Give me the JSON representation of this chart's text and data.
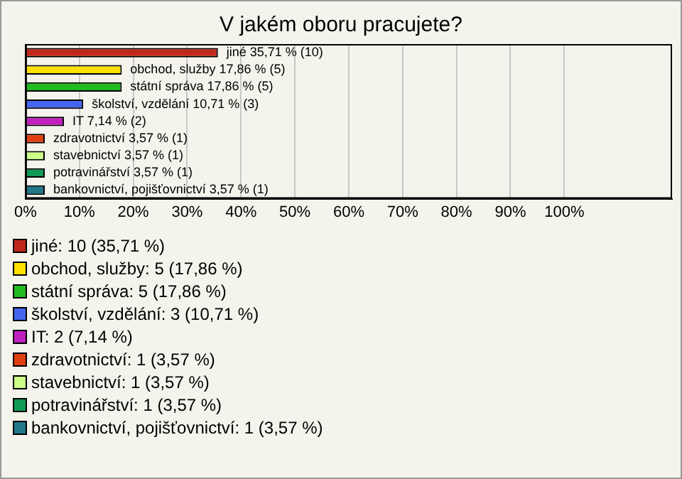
{
  "chart_data": {
    "type": "bar",
    "orientation": "horizontal",
    "title": "V jakém oboru pracujete?",
    "categories": [
      null,
      null,
      null,
      null,
      null,
      null,
      null,
      null,
      null
    ],
    "series": [
      {
        "name": "jiné: 10 (35,71 %)",
        "color": "#c0281c",
        "values": [
          35.71,
          null,
          null,
          null,
          null,
          null,
          null,
          null,
          null
        ],
        "value_labels": [
          "jiné 35,71 % (10)",
          null,
          null,
          null,
          null,
          null,
          null,
          null,
          null
        ]
      },
      {
        "name": "obchod, služby: 5 (17,86 %)",
        "color": "#ffe000",
        "values": [
          null,
          17.86,
          null,
          null,
          null,
          null,
          null,
          null,
          null
        ],
        "value_labels": [
          null,
          "obchod, služby 17,86 % (5)",
          null,
          null,
          null,
          null,
          null,
          null,
          null
        ]
      },
      {
        "name": "státní správa: 5 (17,86 %)",
        "color": "#22bb22",
        "values": [
          null,
          null,
          17.86,
          null,
          null,
          null,
          null,
          null,
          null
        ],
        "value_labels": [
          null,
          null,
          "státní správa 17,86 % (5)",
          null,
          null,
          null,
          null,
          null,
          null
        ]
      },
      {
        "name": "školství, vzdělání: 3 (10,71 %)",
        "color": "#4466ee",
        "values": [
          null,
          null,
          null,
          10.71,
          null,
          null,
          null,
          null,
          null
        ],
        "value_labels": [
          null,
          null,
          null,
          "školství, vzdělání 10,71 % (3)",
          null,
          null,
          null,
          null,
          null
        ]
      },
      {
        "name": "IT: 2 (7,14 %)",
        "color": "#c020c0",
        "values": [
          null,
          null,
          null,
          null,
          7.14,
          null,
          null,
          null,
          null
        ],
        "value_labels": [
          null,
          null,
          null,
          null,
          "IT 7,14 % (2)",
          null,
          null,
          null,
          null
        ]
      },
      {
        "name": "zdravotnictví: 1 (3,57 %)",
        "color": "#e04010",
        "values": [
          null,
          null,
          null,
          null,
          null,
          3.57,
          null,
          null,
          null
        ],
        "value_labels": [
          null,
          null,
          null,
          null,
          null,
          "zdravotnictví 3,57 % (1)",
          null,
          null,
          null
        ]
      },
      {
        "name": "stavebnictví: 1 (3,57 %)",
        "color": "#ccff88",
        "values": [
          null,
          null,
          null,
          null,
          null,
          null,
          3.57,
          null,
          null
        ],
        "value_labels": [
          null,
          null,
          null,
          null,
          null,
          null,
          "stavebnictví 3,57 % (1)",
          null,
          null
        ]
      },
      {
        "name": "potravinářství: 1 (3,57 %)",
        "color": "#119955",
        "values": [
          null,
          null,
          null,
          null,
          null,
          null,
          null,
          3.57,
          null
        ],
        "value_labels": [
          null,
          null,
          null,
          null,
          null,
          null,
          null,
          "potravinářství 3,57 % (1)",
          null
        ]
      },
      {
        "name": "bankovnictví, pojišťovnictví: 1 (3,57 %)",
        "color": "#227788",
        "values": [
          null,
          null,
          null,
          null,
          null,
          null,
          null,
          null,
          3.57
        ],
        "value_labels": [
          null,
          null,
          null,
          null,
          null,
          null,
          null,
          null,
          "bankovnictví, pojišťovnictví 3,57 % (1)"
        ]
      }
    ],
    "xlim": [
      0,
      120
    ],
    "xticks": [
      {
        "value": 0,
        "label": "0%"
      },
      {
        "value": 10,
        "label": "10%"
      },
      {
        "value": 20,
        "label": "20%"
      },
      {
        "value": 30,
        "label": "30%"
      },
      {
        "value": 40,
        "label": "40%"
      },
      {
        "value": 50,
        "label": "50%"
      },
      {
        "value": 60,
        "label": "60%"
      },
      {
        "value": 70,
        "label": "70%"
      },
      {
        "value": 80,
        "label": "80%"
      },
      {
        "value": 90,
        "label": "90%"
      },
      {
        "value": 100,
        "label": "100%"
      }
    ],
    "grid": "x",
    "legend": "bottom",
    "tick_labels": "x"
  }
}
